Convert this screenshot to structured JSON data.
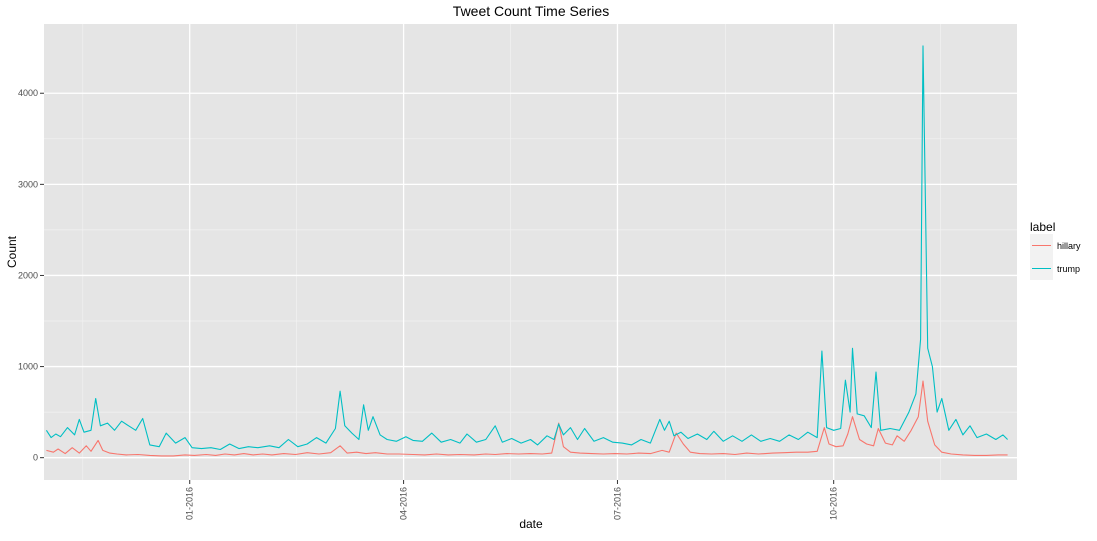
{
  "chart_data": {
    "type": "line",
    "title": "Tweet Count Time Series",
    "xlabel": "date",
    "ylabel": "Count",
    "x_range": [
      "2015-10-31",
      "2016-12-18"
    ],
    "ylim": [
      -245,
      4760
    ],
    "y_ticks": [
      0,
      1000,
      2000,
      3000,
      4000
    ],
    "x_ticks": [
      {
        "date": "2016-01-01",
        "label": "01-2016"
      },
      {
        "date": "2016-04-01",
        "label": "04-2016"
      },
      {
        "date": "2016-07-01",
        "label": "07-2016"
      },
      {
        "date": "2016-10-01",
        "label": "10-2016"
      }
    ],
    "grid": true,
    "legend": {
      "title": "label",
      "placement": "right"
    },
    "series": [
      {
        "name": "hillary",
        "color": "#F8766D",
        "points": [
          [
            "2015-11-01",
            80
          ],
          [
            "2015-11-04",
            60
          ],
          [
            "2015-11-06",
            95
          ],
          [
            "2015-11-09",
            45
          ],
          [
            "2015-11-12",
            110
          ],
          [
            "2015-11-15",
            50
          ],
          [
            "2015-11-18",
            130
          ],
          [
            "2015-11-20",
            70
          ],
          [
            "2015-11-23",
            190
          ],
          [
            "2015-11-25",
            80
          ],
          [
            "2015-11-28",
            50
          ],
          [
            "2015-12-01",
            40
          ],
          [
            "2015-12-05",
            30
          ],
          [
            "2015-12-10",
            35
          ],
          [
            "2015-12-15",
            25
          ],
          [
            "2015-12-20",
            20
          ],
          [
            "2015-12-25",
            20
          ],
          [
            "2015-12-30",
            30
          ],
          [
            "2016-01-03",
            25
          ],
          [
            "2016-01-08",
            35
          ],
          [
            "2016-01-12",
            25
          ],
          [
            "2016-01-16",
            40
          ],
          [
            "2016-01-20",
            30
          ],
          [
            "2016-01-24",
            45
          ],
          [
            "2016-01-28",
            30
          ],
          [
            "2016-02-01",
            40
          ],
          [
            "2016-02-05",
            30
          ],
          [
            "2016-02-10",
            45
          ],
          [
            "2016-02-15",
            35
          ],
          [
            "2016-02-20",
            55
          ],
          [
            "2016-02-25",
            40
          ],
          [
            "2016-03-01",
            55
          ],
          [
            "2016-03-05",
            130
          ],
          [
            "2016-03-08",
            50
          ],
          [
            "2016-03-12",
            60
          ],
          [
            "2016-03-16",
            45
          ],
          [
            "2016-03-20",
            55
          ],
          [
            "2016-03-25",
            40
          ],
          [
            "2016-03-30",
            40
          ],
          [
            "2016-04-05",
            35
          ],
          [
            "2016-04-10",
            30
          ],
          [
            "2016-04-15",
            40
          ],
          [
            "2016-04-20",
            30
          ],
          [
            "2016-04-25",
            35
          ],
          [
            "2016-05-01",
            30
          ],
          [
            "2016-05-06",
            40
          ],
          [
            "2016-05-10",
            35
          ],
          [
            "2016-05-15",
            45
          ],
          [
            "2016-05-20",
            40
          ],
          [
            "2016-05-25",
            45
          ],
          [
            "2016-05-30",
            40
          ],
          [
            "2016-06-03",
            50
          ],
          [
            "2016-06-06",
            380
          ],
          [
            "2016-06-08",
            120
          ],
          [
            "2016-06-11",
            60
          ],
          [
            "2016-06-15",
            50
          ],
          [
            "2016-06-20",
            45
          ],
          [
            "2016-06-25",
            40
          ],
          [
            "2016-06-30",
            45
          ],
          [
            "2016-07-05",
            40
          ],
          [
            "2016-07-10",
            50
          ],
          [
            "2016-07-15",
            45
          ],
          [
            "2016-07-20",
            80
          ],
          [
            "2016-07-23",
            60
          ],
          [
            "2016-07-26",
            270
          ],
          [
            "2016-07-29",
            150
          ],
          [
            "2016-08-01",
            60
          ],
          [
            "2016-08-05",
            45
          ],
          [
            "2016-08-10",
            40
          ],
          [
            "2016-08-15",
            45
          ],
          [
            "2016-08-20",
            35
          ],
          [
            "2016-08-25",
            50
          ],
          [
            "2016-08-30",
            40
          ],
          [
            "2016-09-05",
            50
          ],
          [
            "2016-09-10",
            55
          ],
          [
            "2016-09-15",
            60
          ],
          [
            "2016-09-20",
            60
          ],
          [
            "2016-09-24",
            70
          ],
          [
            "2016-09-27",
            330
          ],
          [
            "2016-09-29",
            150
          ],
          [
            "2016-10-02",
            120
          ],
          [
            "2016-10-05",
            130
          ],
          [
            "2016-10-07",
            260
          ],
          [
            "2016-10-09",
            450
          ],
          [
            "2016-10-12",
            200
          ],
          [
            "2016-10-15",
            150
          ],
          [
            "2016-10-18",
            130
          ],
          [
            "2016-10-20",
            320
          ],
          [
            "2016-10-23",
            160
          ],
          [
            "2016-10-26",
            140
          ],
          [
            "2016-10-28",
            240
          ],
          [
            "2016-10-31",
            180
          ],
          [
            "2016-11-03",
            300
          ],
          [
            "2016-11-06",
            450
          ],
          [
            "2016-11-08",
            840
          ],
          [
            "2016-11-10",
            400
          ],
          [
            "2016-11-13",
            140
          ],
          [
            "2016-11-16",
            60
          ],
          [
            "2016-11-20",
            40
          ],
          [
            "2016-11-25",
            30
          ],
          [
            "2016-11-30",
            25
          ],
          [
            "2016-12-05",
            25
          ],
          [
            "2016-12-10",
            30
          ],
          [
            "2016-12-14",
            30
          ]
        ]
      },
      {
        "name": "trump",
        "color": "#00BFC4",
        "points": [
          [
            "2015-11-01",
            300
          ],
          [
            "2015-11-03",
            220
          ],
          [
            "2015-11-05",
            260
          ],
          [
            "2015-11-07",
            230
          ],
          [
            "2015-11-10",
            330
          ],
          [
            "2015-11-13",
            250
          ],
          [
            "2015-11-15",
            420
          ],
          [
            "2015-11-17",
            280
          ],
          [
            "2015-11-20",
            300
          ],
          [
            "2015-11-22",
            650
          ],
          [
            "2015-11-24",
            350
          ],
          [
            "2015-11-27",
            380
          ],
          [
            "2015-11-30",
            300
          ],
          [
            "2015-12-03",
            400
          ],
          [
            "2015-12-06",
            350
          ],
          [
            "2015-12-09",
            300
          ],
          [
            "2015-12-12",
            430
          ],
          [
            "2015-12-15",
            140
          ],
          [
            "2015-12-19",
            120
          ],
          [
            "2015-12-22",
            270
          ],
          [
            "2015-12-26",
            160
          ],
          [
            "2015-12-30",
            220
          ],
          [
            "2016-01-02",
            110
          ],
          [
            "2016-01-06",
            100
          ],
          [
            "2016-01-10",
            110
          ],
          [
            "2016-01-14",
            90
          ],
          [
            "2016-01-18",
            150
          ],
          [
            "2016-01-22",
            100
          ],
          [
            "2016-01-26",
            120
          ],
          [
            "2016-01-30",
            110
          ],
          [
            "2016-02-04",
            130
          ],
          [
            "2016-02-08",
            110
          ],
          [
            "2016-02-12",
            200
          ],
          [
            "2016-02-16",
            120
          ],
          [
            "2016-02-20",
            150
          ],
          [
            "2016-02-24",
            220
          ],
          [
            "2016-02-28",
            160
          ],
          [
            "2016-03-03",
            320
          ],
          [
            "2016-03-05",
            730
          ],
          [
            "2016-03-07",
            350
          ],
          [
            "2016-03-10",
            270
          ],
          [
            "2016-03-13",
            200
          ],
          [
            "2016-03-15",
            580
          ],
          [
            "2016-03-17",
            300
          ],
          [
            "2016-03-19",
            450
          ],
          [
            "2016-03-22",
            250
          ],
          [
            "2016-03-25",
            200
          ],
          [
            "2016-03-29",
            180
          ],
          [
            "2016-04-02",
            230
          ],
          [
            "2016-04-05",
            190
          ],
          [
            "2016-04-09",
            180
          ],
          [
            "2016-04-13",
            270
          ],
          [
            "2016-04-17",
            170
          ],
          [
            "2016-04-21",
            200
          ],
          [
            "2016-04-25",
            160
          ],
          [
            "2016-04-28",
            260
          ],
          [
            "2016-05-02",
            170
          ],
          [
            "2016-05-06",
            200
          ],
          [
            "2016-05-10",
            350
          ],
          [
            "2016-05-13",
            170
          ],
          [
            "2016-05-17",
            210
          ],
          [
            "2016-05-21",
            160
          ],
          [
            "2016-05-25",
            200
          ],
          [
            "2016-05-28",
            140
          ],
          [
            "2016-06-01",
            240
          ],
          [
            "2016-06-04",
            200
          ],
          [
            "2016-06-06",
            370
          ],
          [
            "2016-06-08",
            250
          ],
          [
            "2016-06-11",
            330
          ],
          [
            "2016-06-14",
            200
          ],
          [
            "2016-06-17",
            320
          ],
          [
            "2016-06-21",
            180
          ],
          [
            "2016-06-25",
            220
          ],
          [
            "2016-06-29",
            170
          ],
          [
            "2016-07-03",
            160
          ],
          [
            "2016-07-07",
            140
          ],
          [
            "2016-07-11",
            200
          ],
          [
            "2016-07-15",
            160
          ],
          [
            "2016-07-19",
            420
          ],
          [
            "2016-07-21",
            300
          ],
          [
            "2016-07-23",
            400
          ],
          [
            "2016-07-25",
            240
          ],
          [
            "2016-07-28",
            280
          ],
          [
            "2016-07-31",
            210
          ],
          [
            "2016-08-04",
            260
          ],
          [
            "2016-08-08",
            200
          ],
          [
            "2016-08-11",
            290
          ],
          [
            "2016-08-15",
            180
          ],
          [
            "2016-08-19",
            240
          ],
          [
            "2016-08-23",
            180
          ],
          [
            "2016-08-27",
            250
          ],
          [
            "2016-08-31",
            180
          ],
          [
            "2016-09-04",
            210
          ],
          [
            "2016-09-08",
            180
          ],
          [
            "2016-09-12",
            250
          ],
          [
            "2016-09-16",
            200
          ],
          [
            "2016-09-20",
            280
          ],
          [
            "2016-09-24",
            220
          ],
          [
            "2016-09-26",
            1170
          ],
          [
            "2016-09-28",
            330
          ],
          [
            "2016-10-01",
            300
          ],
          [
            "2016-10-04",
            320
          ],
          [
            "2016-10-06",
            850
          ],
          [
            "2016-10-08",
            500
          ],
          [
            "2016-10-09",
            1200
          ],
          [
            "2016-10-11",
            480
          ],
          [
            "2016-10-14",
            460
          ],
          [
            "2016-10-17",
            330
          ],
          [
            "2016-10-19",
            940
          ],
          [
            "2016-10-21",
            300
          ],
          [
            "2016-10-25",
            320
          ],
          [
            "2016-10-29",
            300
          ],
          [
            "2016-11-02",
            500
          ],
          [
            "2016-11-05",
            700
          ],
          [
            "2016-11-07",
            1300
          ],
          [
            "2016-11-08",
            4520
          ],
          [
            "2016-11-10",
            1200
          ],
          [
            "2016-11-12",
            1000
          ],
          [
            "2016-11-14",
            500
          ],
          [
            "2016-11-16",
            650
          ],
          [
            "2016-11-19",
            300
          ],
          [
            "2016-11-22",
            420
          ],
          [
            "2016-11-25",
            250
          ],
          [
            "2016-11-28",
            350
          ],
          [
            "2016-12-01",
            220
          ],
          [
            "2016-12-05",
            260
          ],
          [
            "2016-12-09",
            200
          ],
          [
            "2016-12-12",
            250
          ],
          [
            "2016-12-14",
            200
          ]
        ]
      }
    ]
  }
}
